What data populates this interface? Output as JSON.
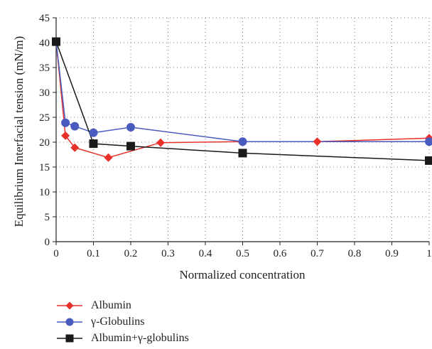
{
  "chart_data": {
    "type": "line",
    "xlabel": "Normalized concentration",
    "ylabel": "Equilibrium Interfacial tension (mN/m)",
    "xlim": [
      0,
      1
    ],
    "ylim": [
      0,
      45
    ],
    "x_ticks": [
      "0",
      "0.1",
      "0.2",
      "0.3",
      "0.4",
      "0.5",
      "0.6",
      "0.7",
      "0.8",
      "0.9",
      "1"
    ],
    "y_ticks": [
      "0",
      "5",
      "10",
      "15",
      "20",
      "25",
      "30",
      "35",
      "40",
      "45"
    ],
    "grid": "dotted",
    "legend_position": "bottom",
    "series": [
      {
        "name": "Albumin",
        "color": "#e8312a",
        "marker": "diamond",
        "points": [
          [
            0,
            40.2
          ],
          [
            0.025,
            21.3
          ],
          [
            0.05,
            18.9
          ],
          [
            0.14,
            16.9
          ],
          [
            0.28,
            19.9
          ],
          [
            0.5,
            20.1
          ],
          [
            0.7,
            20.1
          ],
          [
            1.0,
            20.8
          ]
        ]
      },
      {
        "name": "γ-Globulins",
        "color": "#4a5bbf",
        "marker": "circle",
        "points": [
          [
            0,
            40.2
          ],
          [
            0.025,
            23.9
          ],
          [
            0.05,
            23.2
          ],
          [
            0.1,
            21.9
          ],
          [
            0.2,
            23.0
          ],
          [
            0.5,
            20.1
          ],
          [
            1.0,
            20.1
          ]
        ]
      },
      {
        "name": "Albumin+γ-globulins",
        "color": "#1a1a1a",
        "marker": "square",
        "points": [
          [
            0,
            40.2
          ],
          [
            0.1,
            19.7
          ],
          [
            0.2,
            19.2
          ],
          [
            0.5,
            17.8
          ],
          [
            1.0,
            16.3
          ]
        ]
      }
    ]
  }
}
